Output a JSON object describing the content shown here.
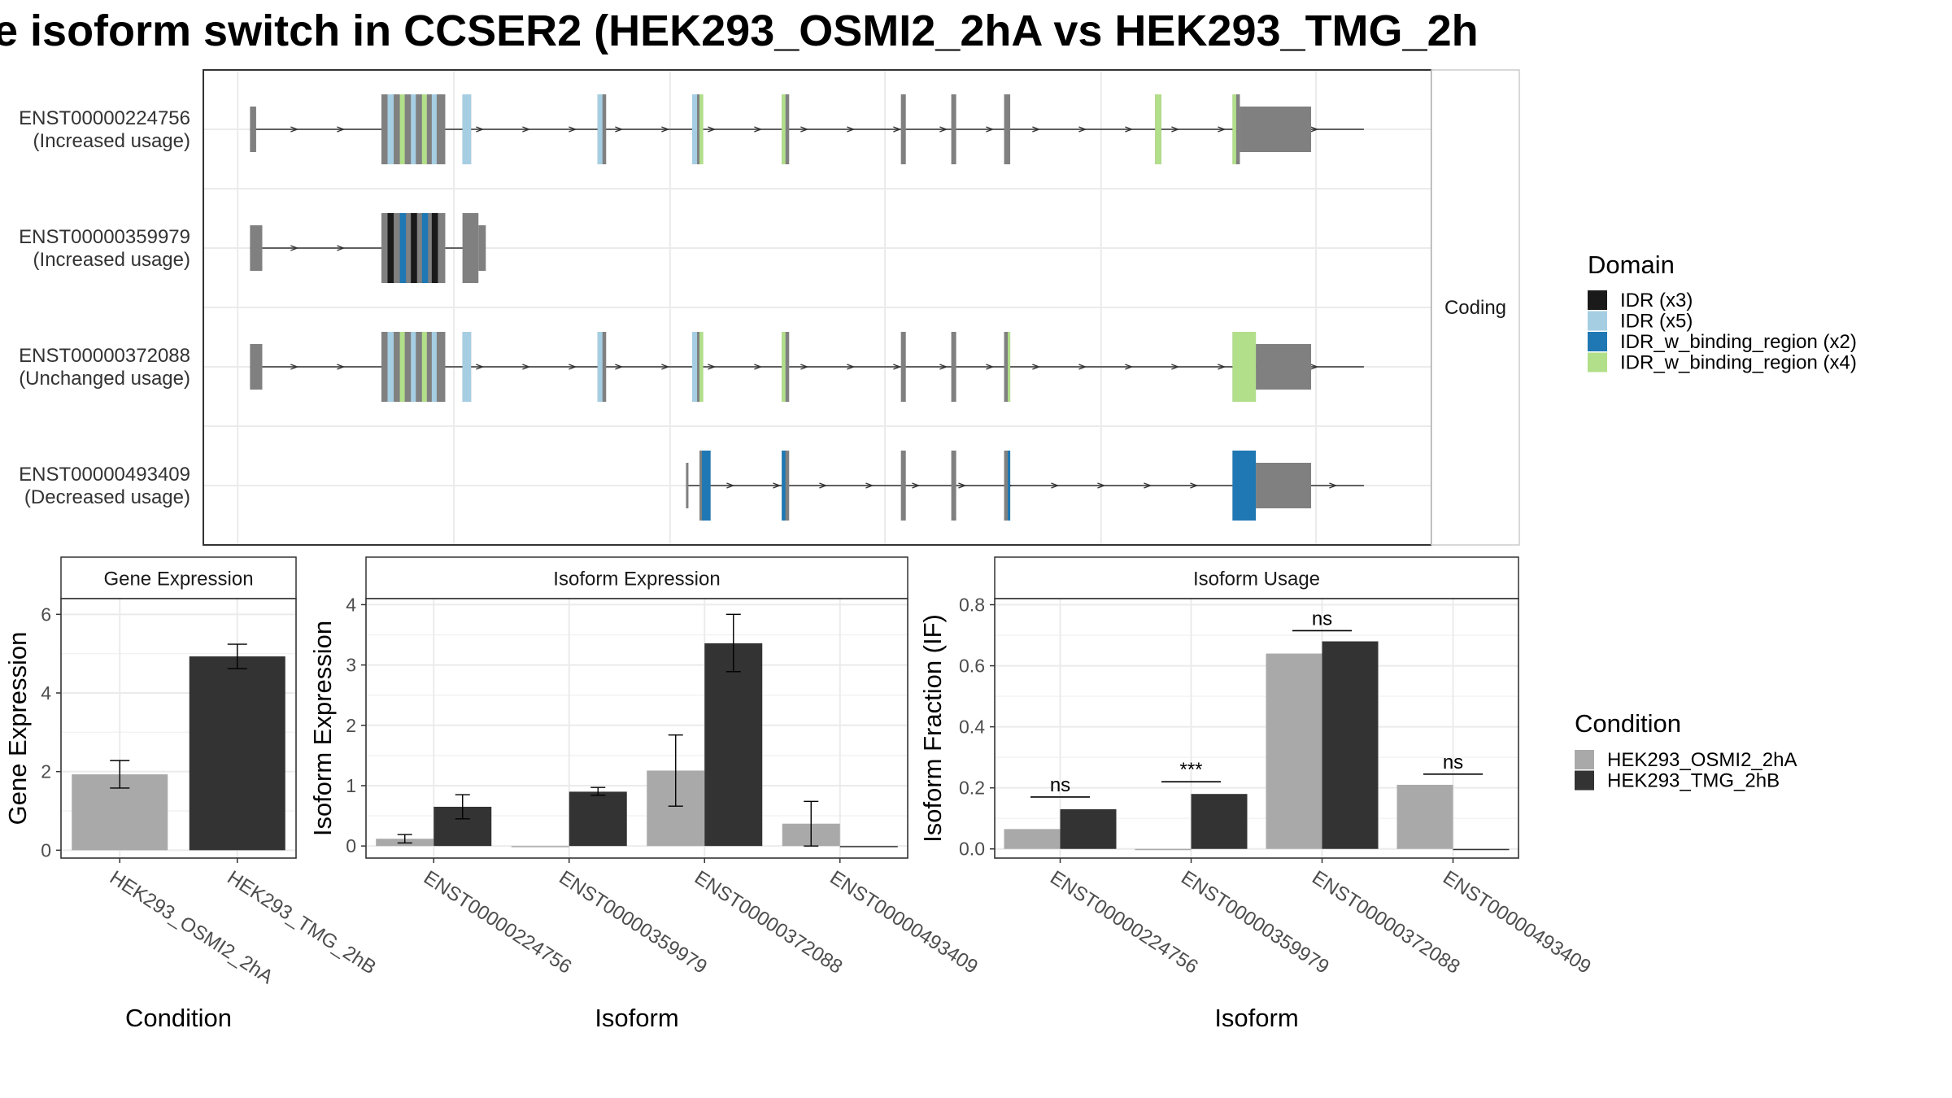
{
  "title": "e isoform switch in CCSER2 (HEK293_OSMI2_2hA vs HEK293_TMG_2h",
  "colors": {
    "exon": "#808080",
    "IDR": "#1a1a1a",
    "IDR_light": "#a6cee3",
    "IDR_bind_blue": "#1f78b4",
    "IDR_bind_green": "#b2df8a",
    "cond_a": "#a9a9a9",
    "cond_b": "#333333"
  },
  "structure": {
    "facet_label": "Coding",
    "transcripts": [
      {
        "id": "ENST00000224756",
        "usage": "(Increased usage)",
        "intron": [
          0.038,
          0.945
        ],
        "exons": [
          {
            "s": 0.038,
            "e": 0.043,
            "t": "nc"
          },
          {
            "s": 0.145,
            "e": 0.197,
            "t": "cds"
          },
          {
            "s": 0.211,
            "e": 0.218,
            "t": "cds"
          },
          {
            "s": 0.321,
            "e": 0.328,
            "t": "cds"
          },
          {
            "s": 0.398,
            "e": 0.407,
            "t": "cds"
          },
          {
            "s": 0.471,
            "e": 0.477,
            "t": "cds"
          },
          {
            "s": 0.568,
            "e": 0.572,
            "t": "cds"
          },
          {
            "s": 0.609,
            "e": 0.613,
            "t": "cds"
          },
          {
            "s": 0.652,
            "e": 0.657,
            "t": "cds"
          },
          {
            "s": 0.775,
            "e": 0.78,
            "t": "cds"
          },
          {
            "s": 0.838,
            "e": 0.844,
            "t": "cds"
          },
          {
            "s": 0.844,
            "e": 0.902,
            "t": "nc"
          }
        ],
        "domains": [
          {
            "s": 0.15,
            "e": 0.155,
            "c": "IDR_light"
          },
          {
            "s": 0.16,
            "e": 0.164,
            "c": "IDR_bind_green"
          },
          {
            "s": 0.169,
            "e": 0.173,
            "c": "IDR_light"
          },
          {
            "s": 0.178,
            "e": 0.182,
            "c": "IDR_bind_green"
          },
          {
            "s": 0.186,
            "e": 0.19,
            "c": "IDR_light"
          },
          {
            "s": 0.211,
            "e": 0.218,
            "c": "IDR_light"
          },
          {
            "s": 0.321,
            "e": 0.325,
            "c": "IDR_light"
          },
          {
            "s": 0.398,
            "e": 0.402,
            "c": "IDR_light"
          },
          {
            "s": 0.404,
            "e": 0.407,
            "c": "IDR_bind_green"
          },
          {
            "s": 0.471,
            "e": 0.474,
            "c": "IDR_bind_green"
          },
          {
            "s": 0.775,
            "e": 0.78,
            "c": "IDR_bind_green"
          },
          {
            "s": 0.838,
            "e": 0.841,
            "c": "IDR_bind_green"
          }
        ]
      },
      {
        "id": "ENST00000359979",
        "usage": "(Increased usage)",
        "intron": [
          0.038,
          0.212
        ],
        "exons": [
          {
            "s": 0.038,
            "e": 0.048,
            "t": "nc"
          },
          {
            "s": 0.145,
            "e": 0.197,
            "t": "cds"
          },
          {
            "s": 0.211,
            "e": 0.224,
            "t": "cds"
          },
          {
            "s": 0.224,
            "e": 0.23,
            "t": "nc"
          }
        ],
        "domains": [
          {
            "s": 0.15,
            "e": 0.155,
            "c": "IDR"
          },
          {
            "s": 0.16,
            "e": 0.165,
            "c": "IDR_bind_blue"
          },
          {
            "s": 0.169,
            "e": 0.174,
            "c": "IDR"
          },
          {
            "s": 0.178,
            "e": 0.183,
            "c": "IDR_bind_blue"
          },
          {
            "s": 0.186,
            "e": 0.191,
            "c": "IDR"
          }
        ]
      },
      {
        "id": "ENST00000372088",
        "usage": "(Unchanged usage)",
        "intron": [
          0.038,
          0.945
        ],
        "exons": [
          {
            "s": 0.038,
            "e": 0.048,
            "t": "nc"
          },
          {
            "s": 0.145,
            "e": 0.197,
            "t": "cds"
          },
          {
            "s": 0.211,
            "e": 0.218,
            "t": "cds"
          },
          {
            "s": 0.321,
            "e": 0.328,
            "t": "cds"
          },
          {
            "s": 0.398,
            "e": 0.407,
            "t": "cds"
          },
          {
            "s": 0.471,
            "e": 0.477,
            "t": "cds"
          },
          {
            "s": 0.568,
            "e": 0.572,
            "t": "cds"
          },
          {
            "s": 0.609,
            "e": 0.613,
            "t": "cds"
          },
          {
            "s": 0.652,
            "e": 0.657,
            "t": "cds"
          },
          {
            "s": 0.838,
            "e": 0.857,
            "t": "cds"
          },
          {
            "s": 0.857,
            "e": 0.902,
            "t": "nc"
          }
        ],
        "domains": [
          {
            "s": 0.15,
            "e": 0.155,
            "c": "IDR_light"
          },
          {
            "s": 0.16,
            "e": 0.164,
            "c": "IDR_bind_green"
          },
          {
            "s": 0.169,
            "e": 0.173,
            "c": "IDR_light"
          },
          {
            "s": 0.178,
            "e": 0.182,
            "c": "IDR_bind_green"
          },
          {
            "s": 0.186,
            "e": 0.19,
            "c": "IDR_light"
          },
          {
            "s": 0.211,
            "e": 0.218,
            "c": "IDR_light"
          },
          {
            "s": 0.321,
            "e": 0.325,
            "c": "IDR_light"
          },
          {
            "s": 0.398,
            "e": 0.402,
            "c": "IDR_light"
          },
          {
            "s": 0.404,
            "e": 0.407,
            "c": "IDR_bind_green"
          },
          {
            "s": 0.471,
            "e": 0.474,
            "c": "IDR_bind_green"
          },
          {
            "s": 0.655,
            "e": 0.657,
            "c": "IDR_bind_green"
          },
          {
            "s": 0.838,
            "e": 0.857,
            "c": "IDR_bind_green"
          }
        ]
      },
      {
        "id": "ENST00000493409",
        "usage": "(Decreased usage)",
        "intron": [
          0.393,
          0.945
        ],
        "exons": [
          {
            "s": 0.393,
            "e": 0.395,
            "t": "nc"
          },
          {
            "s": 0.404,
            "e": 0.413,
            "t": "cds"
          },
          {
            "s": 0.471,
            "e": 0.477,
            "t": "cds"
          },
          {
            "s": 0.568,
            "e": 0.572,
            "t": "cds"
          },
          {
            "s": 0.609,
            "e": 0.613,
            "t": "cds"
          },
          {
            "s": 0.652,
            "e": 0.657,
            "t": "cds"
          },
          {
            "s": 0.838,
            "e": 0.857,
            "t": "cds"
          },
          {
            "s": 0.857,
            "e": 0.902,
            "t": "nc"
          }
        ],
        "domains": [
          {
            "s": 0.406,
            "e": 0.413,
            "c": "IDR_bind_blue"
          },
          {
            "s": 0.471,
            "e": 0.474,
            "c": "IDR_bind_blue"
          },
          {
            "s": 0.655,
            "e": 0.657,
            "c": "IDR_bind_blue"
          },
          {
            "s": 0.838,
            "e": 0.857,
            "c": "IDR_bind_blue"
          }
        ]
      }
    ]
  },
  "legend_domain": {
    "title": "Domain",
    "items": [
      {
        "label": "IDR (x3)",
        "color": "IDR"
      },
      {
        "label": "IDR (x5)",
        "color": "IDR_light"
      },
      {
        "label": "IDR_w_binding_region (x2)",
        "color": "IDR_bind_blue"
      },
      {
        "label": "IDR_w_binding_region (x4)",
        "color": "IDR_bind_green"
      }
    ]
  },
  "legend_condition": {
    "title": "Condition",
    "items": [
      {
        "label": "HEK293_OSMI2_2hA",
        "color": "cond_a"
      },
      {
        "label": "HEK293_TMG_2hB",
        "color": "cond_b"
      }
    ]
  },
  "chart_data": [
    {
      "type": "bar",
      "title": "Gene Expression",
      "xlabel": "Condition",
      "ylabel": "Gene Expression",
      "ylim": [
        -0.2,
        6.4
      ],
      "yticks": [
        0,
        2,
        4,
        6
      ],
      "categories": [
        "HEK293_OSMI2_2hA",
        "HEK293_TMG_2hB"
      ],
      "values": [
        1.93,
        4.93
      ],
      "errors": [
        [
          1.58,
          2.28
        ],
        [
          4.62,
          5.24
        ]
      ],
      "colors": [
        "cond_a",
        "cond_b"
      ]
    },
    {
      "type": "bar",
      "title": "Isoform Expression",
      "xlabel": "Isoform",
      "ylabel": "Isoform Expression",
      "ylim": [
        -0.2,
        4.1
      ],
      "yticks": [
        0,
        1,
        2,
        3,
        4
      ],
      "categories": [
        "ENST00000224756",
        "ENST00000359979",
        "ENST00000372088",
        "ENST00000493409"
      ],
      "series": [
        {
          "name": "HEK293_OSMI2_2hA",
          "values": [
            0.12,
            0.0,
            1.25,
            0.37
          ],
          "errors": [
            [
              0.05,
              0.19
            ],
            null,
            [
              0.66,
              1.84
            ],
            [
              0.0,
              0.74
            ]
          ]
        },
        {
          "name": "HEK293_TMG_2hB",
          "values": [
            0.65,
            0.9,
            3.36,
            0.0
          ],
          "errors": [
            [
              0.45,
              0.85
            ],
            [
              0.84,
              0.97
            ],
            [
              2.89,
              3.84
            ],
            null
          ]
        }
      ]
    },
    {
      "type": "bar",
      "title": "Isoform Usage",
      "xlabel": "Isoform",
      "ylabel": "Isoform Fraction (IF)",
      "ylim": [
        -0.03,
        0.82
      ],
      "yticks": [
        0.0,
        0.2,
        0.4,
        0.6,
        0.8
      ],
      "ytick_labels": [
        "0.0",
        "0.2",
        "0.4",
        "0.6",
        "0.8"
      ],
      "categories": [
        "ENST00000224756",
        "ENST00000359979",
        "ENST00000372088",
        "ENST00000493409"
      ],
      "series": [
        {
          "name": "HEK293_OSMI2_2hA",
          "values": [
            0.065,
            0.0,
            0.64,
            0.21
          ]
        },
        {
          "name": "HEK293_TMG_2hB",
          "values": [
            0.13,
            0.18,
            0.68,
            0.0
          ]
        }
      ],
      "significance": [
        {
          "label": "ns",
          "y": 0.17
        },
        {
          "label": "***",
          "y": 0.22
        },
        {
          "label": "ns",
          "y": 0.715
        },
        {
          "label": "ns",
          "y": 0.245
        }
      ]
    }
  ]
}
